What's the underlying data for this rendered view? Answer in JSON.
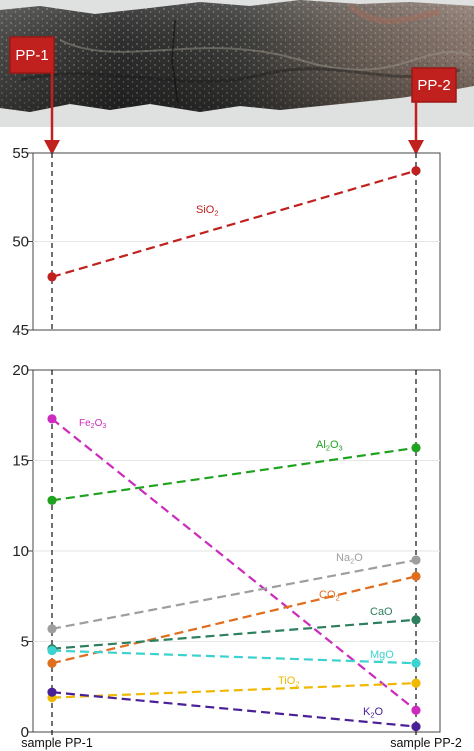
{
  "photo": {
    "markers": [
      {
        "label": "PP-1"
      },
      {
        "label": "PP-2"
      }
    ]
  },
  "colors": {
    "marker_box": "#c0201e",
    "SiO2": "#c0201e",
    "Fe2O3": "#cc2bbd",
    "Al2O3": "#1ea31e",
    "Na2O": "#9e9e9e",
    "CO2": "#e06e1e",
    "CaO": "#2e7f5e",
    "MgO": "#3cd2cf",
    "TiO2": "#f0b800",
    "K2O": "#4a2096"
  },
  "chart_data": [
    {
      "type": "line",
      "x": [
        "sample PP-1",
        "sample PP-2"
      ],
      "ylim": [
        45,
        55
      ],
      "yticks": [
        "45",
        "50",
        "55"
      ],
      "series": [
        {
          "name": "SiO2",
          "values": [
            48.0,
            54.0
          ]
        }
      ]
    },
    {
      "type": "line",
      "x": [
        "sample PP-1",
        "sample PP-2"
      ],
      "ylim": [
        0,
        20
      ],
      "yticks": [
        "0",
        "5",
        "10",
        "15",
        "20"
      ],
      "series": [
        {
          "name": "Fe2O3",
          "values": [
            17.3,
            1.2
          ]
        },
        {
          "name": "Al2O3",
          "values": [
            12.8,
            15.7
          ]
        },
        {
          "name": "Na2O",
          "values": [
            5.7,
            9.5
          ]
        },
        {
          "name": "CO2",
          "values": [
            3.8,
            8.6
          ]
        },
        {
          "name": "CaO",
          "values": [
            4.6,
            6.2
          ]
        },
        {
          "name": "MgO",
          "values": [
            4.5,
            3.8
          ]
        },
        {
          "name": "TiO2",
          "values": [
            1.9,
            2.7
          ]
        },
        {
          "name": "K2O",
          "values": [
            2.2,
            0.3
          ]
        }
      ]
    }
  ],
  "xaxis": {
    "labels": [
      "sample PP-1",
      "sample PP-2"
    ]
  }
}
